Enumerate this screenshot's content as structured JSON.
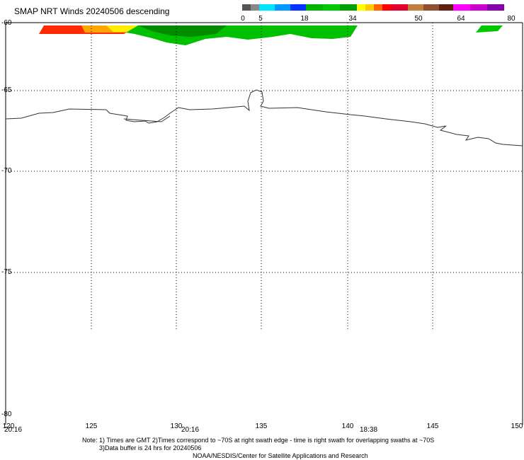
{
  "title": "SMAP NRT Winds  20240506 descending",
  "colorbar": {
    "labels": [
      "0",
      "5",
      "18",
      "34",
      "50",
      "64",
      "80"
    ],
    "segments": [
      {
        "color": "#555555"
      },
      {
        "color": "#888888"
      },
      {
        "color": "#00e5ff"
      },
      {
        "color": "#0099ff"
      },
      {
        "color": "#0033ff"
      },
      {
        "color": "#00b400"
      },
      {
        "color": "#00c800"
      },
      {
        "color": "#00a000"
      },
      {
        "color": "#ffff00"
      },
      {
        "color": "#ffcc00"
      },
      {
        "color": "#ff6600"
      },
      {
        "color": "#ff0000"
      },
      {
        "color": "#e0002a"
      },
      {
        "color": "#c08040"
      },
      {
        "color": "#905030"
      },
      {
        "color": "#602010"
      },
      {
        "color": "#ff00ff"
      },
      {
        "color": "#cc00cc"
      },
      {
        "color": "#8800aa"
      }
    ]
  },
  "map": {
    "lat_labels": [
      "-60",
      "-65",
      "-70",
      "-75",
      "-80"
    ],
    "lon_labels": [
      "120",
      "125",
      "130",
      "135",
      "140",
      "145",
      "150"
    ],
    "time_labels": [
      "20:16",
      "20:16",
      "18:38"
    ]
  },
  "notes": {
    "line1": "Note: 1) Times are GMT 2)Times correspond to ~70S at right swath edge - time is right swath for overlapping swaths at ~70S",
    "line2": "3)Data buffer is 24 hrs for 20240506",
    "line3": "NOAA/NESDIS/Center for Satellite Applications and Research"
  }
}
